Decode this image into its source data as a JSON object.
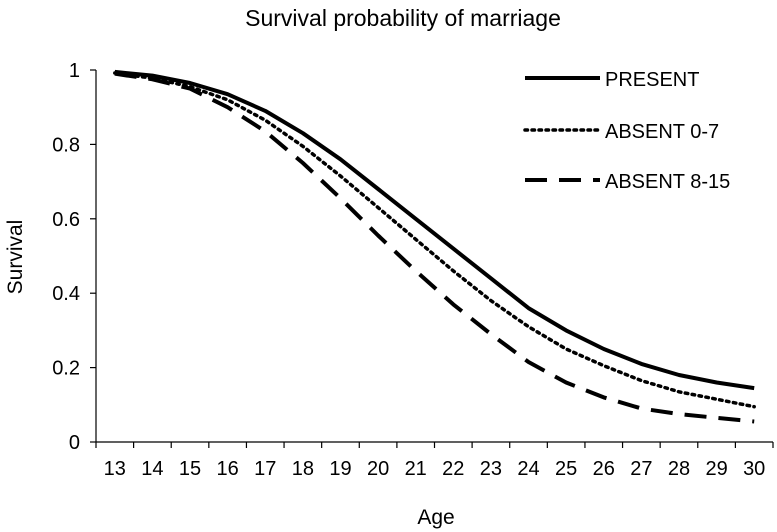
{
  "chart_data": {
    "type": "line",
    "title": "Survival probability of marriage",
    "xlabel": "Age",
    "ylabel": "Survival",
    "x": [
      13,
      14,
      15,
      16,
      17,
      18,
      19,
      20,
      21,
      22,
      23,
      24,
      25,
      26,
      27,
      28,
      29,
      30
    ],
    "ylim": [
      0,
      1
    ],
    "yticks": [
      "0",
      "0.2",
      "0.4",
      "0.6",
      "0.8",
      "1"
    ],
    "grid": false,
    "legend_position": "top-right",
    "series": [
      {
        "name": "PRESENT",
        "style": "solid",
        "color": "#000000",
        "values": [
          0.995,
          0.985,
          0.965,
          0.935,
          0.89,
          0.83,
          0.76,
          0.68,
          0.6,
          0.52,
          0.44,
          0.36,
          0.3,
          0.25,
          0.21,
          0.18,
          0.16,
          0.145
        ]
      },
      {
        "name": "ABSENT 0-7",
        "style": "dotted",
        "color": "#000000",
        "values": [
          0.992,
          0.978,
          0.955,
          0.92,
          0.865,
          0.795,
          0.715,
          0.63,
          0.545,
          0.46,
          0.38,
          0.31,
          0.25,
          0.205,
          0.165,
          0.135,
          0.115,
          0.095
        ]
      },
      {
        "name": "ABSENT 8-15",
        "style": "dashed",
        "color": "#000000",
        "values": [
          0.99,
          0.975,
          0.95,
          0.9,
          0.835,
          0.75,
          0.655,
          0.555,
          0.46,
          0.37,
          0.29,
          0.215,
          0.16,
          0.12,
          0.09,
          0.075,
          0.065,
          0.055
        ]
      }
    ]
  }
}
